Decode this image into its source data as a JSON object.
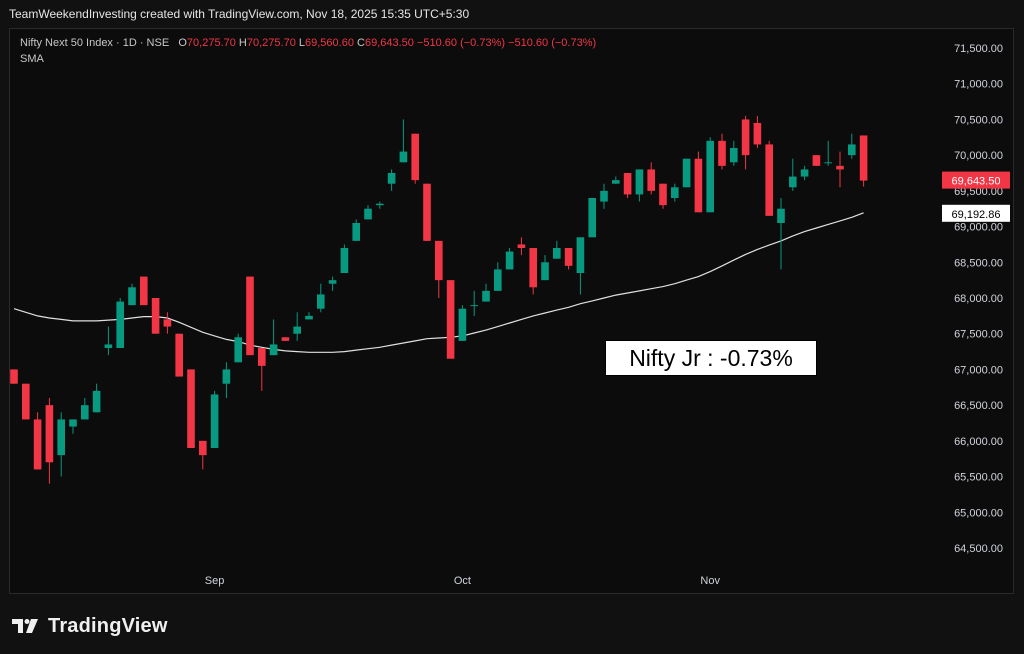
{
  "header": {
    "credit": "TeamWeekendInvesting created with TradingView.com, Nov 18, 2025 15:35 UTC+5:30"
  },
  "legend": {
    "symbol": "Nifty Next 50 Index · 1D · NSE",
    "o_label": "O",
    "o_value": "70,275.70",
    "h_label": "H",
    "h_value": "70,275.70",
    "l_label": "L",
    "l_value": "69,560.60",
    "c_label": "C",
    "c_value": "69,643.50",
    "change": "−510.60 (−0.73%)",
    "change2": "−510.60 (−0.73%)",
    "indicator": "SMA"
  },
  "annotation": {
    "text": "Nifty Jr : -0.73%"
  },
  "footer": {
    "brand": "TradingView"
  },
  "colors": {
    "up": "#089981",
    "down": "#f23645",
    "sma": "#e0e0e0",
    "grid": "#1c1c1c"
  },
  "chart_data": {
    "type": "candlestick",
    "title": "Nifty Next 50 Index · 1D · NSE",
    "y_ticks": [
      "71,500.00",
      "71,000.00",
      "70,500.00",
      "70,000.00",
      "69,500.00",
      "69,000.00",
      "68,500.00",
      "68,000.00",
      "67,500.00",
      "67,000.00",
      "66,500.00",
      "66,000.00",
      "65,500.00",
      "65,000.00",
      "64,500.00"
    ],
    "y_tick_values": [
      71500,
      71000,
      70500,
      70000,
      69500,
      69000,
      68500,
      68000,
      67500,
      67000,
      66500,
      66000,
      65500,
      65000,
      64500
    ],
    "ylim": [
      64200,
      71800
    ],
    "x_tick_labels": [
      {
        "index": 17,
        "label": "Sep"
      },
      {
        "index": 38,
        "label": "Oct"
      },
      {
        "index": 59,
        "label": "Nov"
      }
    ],
    "last_price_label": "69,643.50",
    "sma_label": "69,192.86",
    "candles": [
      [
        67000,
        67000,
        66800,
        66800
      ],
      [
        66800,
        66800,
        66300,
        66300
      ],
      [
        66300,
        66400,
        65600,
        65600
      ],
      [
        66500,
        66600,
        65400,
        65700
      ],
      [
        65800,
        66400,
        65500,
        66300
      ],
      [
        66200,
        66300,
        66100,
        66300
      ],
      [
        66300,
        66600,
        66300,
        66500
      ],
      [
        66400,
        66800,
        66400,
        66700
      ],
      [
        67300,
        67600,
        67200,
        67350
      ],
      [
        67300,
        68000,
        67300,
        67950
      ],
      [
        67900,
        68200,
        67900,
        68150
      ],
      [
        68300,
        68300,
        67900,
        67900
      ],
      [
        68000,
        68000,
        67500,
        67500
      ],
      [
        67700,
        67800,
        67500,
        67600
      ],
      [
        67500,
        67500,
        66900,
        66900
      ],
      [
        67000,
        67000,
        65900,
        65900
      ],
      [
        66000,
        66000,
        65600,
        65800
      ],
      [
        65900,
        66700,
        65900,
        66650
      ],
      [
        66800,
        67100,
        66600,
        67000
      ],
      [
        67100,
        67500,
        67100,
        67450
      ],
      [
        68300,
        68300,
        67200,
        67200
      ],
      [
        67300,
        67300,
        66700,
        67050
      ],
      [
        67200,
        67700,
        67200,
        67350
      ],
      [
        67450,
        67450,
        67400,
        67400
      ],
      [
        67500,
        67800,
        67400,
        67600
      ],
      [
        67700,
        67800,
        67700,
        67750
      ],
      [
        67850,
        68200,
        67800,
        68050
      ],
      [
        68200,
        68300,
        68100,
        68250
      ],
      [
        68350,
        68750,
        68350,
        68700
      ],
      [
        68800,
        69100,
        68800,
        69050
      ],
      [
        69100,
        69300,
        69100,
        69250
      ],
      [
        69300,
        69350,
        69250,
        69320
      ],
      [
        69600,
        69800,
        69500,
        69750
      ],
      [
        69900,
        70500,
        69900,
        70050
      ],
      [
        70300,
        70300,
        69600,
        69650
      ],
      [
        69600,
        69600,
        68800,
        68800
      ],
      [
        68800,
        68800,
        68000,
        68250
      ],
      [
        68250,
        68250,
        67150,
        67150
      ],
      [
        67400,
        67900,
        67400,
        67850
      ],
      [
        67900,
        68100,
        67750,
        67900
      ],
      [
        67950,
        68200,
        67950,
        68100
      ],
      [
        68100,
        68500,
        68100,
        68400
      ],
      [
        68400,
        68700,
        68400,
        68650
      ],
      [
        68750,
        68850,
        68600,
        68700
      ],
      [
        68700,
        68700,
        68050,
        68150
      ],
      [
        68250,
        68600,
        68250,
        68500
      ],
      [
        68550,
        68800,
        68550,
        68700
      ],
      [
        68700,
        68700,
        68400,
        68450
      ],
      [
        68350,
        68800,
        68050,
        68850
      ],
      [
        68850,
        69400,
        68850,
        69400
      ],
      [
        69350,
        69600,
        69250,
        69500
      ],
      [
        69600,
        69700,
        69600,
        69650
      ],
      [
        69750,
        69750,
        69400,
        69450
      ],
      [
        69450,
        69800,
        69350,
        69800
      ],
      [
        69800,
        69900,
        69450,
        69500
      ],
      [
        69600,
        69600,
        69250,
        69300
      ],
      [
        69400,
        69600,
        69350,
        69550
      ],
      [
        69550,
        69950,
        69550,
        69950
      ],
      [
        69950,
        70050,
        69200,
        69200
      ],
      [
        69200,
        70250,
        69200,
        70200
      ],
      [
        70200,
        70300,
        69800,
        69850
      ],
      [
        69900,
        70200,
        69850,
        70100
      ],
      [
        70500,
        70550,
        69800,
        70000
      ],
      [
        70450,
        70550,
        70100,
        70150
      ],
      [
        70150,
        70200,
        69150,
        69150
      ],
      [
        69050,
        69400,
        68400,
        69250
      ],
      [
        69550,
        69950,
        69500,
        69700
      ],
      [
        69700,
        69850,
        69650,
        69800
      ],
      [
        70000,
        70000,
        69850,
        69850
      ],
      [
        69900,
        70200,
        69850,
        69900
      ],
      [
        69850,
        70050,
        69550,
        69800
      ],
      [
        70000,
        70300,
        69950,
        70150
      ],
      [
        70275.7,
        70275.7,
        69560.6,
        69643.5
      ]
    ],
    "sma": [
      67850,
      67800,
      67750,
      67720,
      67700,
      67680,
      67680,
      67680,
      67690,
      67700,
      67720,
      67740,
      67740,
      67720,
      67660,
      67590,
      67520,
      67470,
      67420,
      67390,
      67340,
      67310,
      67280,
      67260,
      67250,
      67240,
      67240,
      67240,
      67250,
      67270,
      67290,
      67310,
      67340,
      67370,
      67400,
      67430,
      67440,
      67450,
      67470,
      67510,
      67550,
      67600,
      67650,
      67700,
      67750,
      67790,
      67830,
      67870,
      67920,
      67960,
      68000,
      68040,
      68070,
      68100,
      68130,
      68160,
      68200,
      68250,
      68300,
      68370,
      68450,
      68530,
      68610,
      68680,
      68740,
      68800,
      68870,
      68930,
      68980,
      69030,
      69080,
      69130,
      69192.86
    ]
  }
}
